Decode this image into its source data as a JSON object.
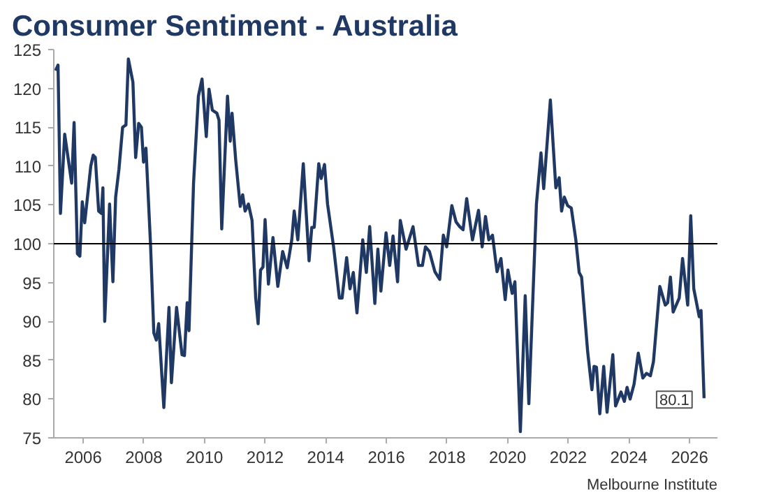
{
  "chart_data": {
    "type": "line",
    "title": "Consumer Sentiment - Australia",
    "annotations": [
      {
        "text": "80.1",
        "x": 2026.48,
        "y": 80.1
      },
      "Melbourne Institute"
    ],
    "xlim": [
      2005.03,
      2026.92
    ],
    "ylim": [
      75,
      125
    ],
    "xticks": [
      2006,
      2008,
      2010,
      2012,
      2014,
      2016,
      2018,
      2020,
      2022,
      2024,
      2026
    ],
    "yticks": [
      75,
      80,
      85,
      90,
      95,
      100,
      105,
      110,
      115,
      120,
      125
    ],
    "grid": false,
    "ref_lines": [
      {
        "axis": "y",
        "value": 100,
        "color": "#000000"
      }
    ],
    "series": [
      {
        "color": "#1f3864",
        "x": [
          2005.09,
          2005.17,
          2005.25,
          2005.39,
          2005.62,
          2005.7,
          2005.81,
          2005.89,
          2005.97,
          2006.05,
          2006.25,
          2006.33,
          2006.4,
          2006.51,
          2006.6,
          2006.65,
          2006.71,
          2006.87,
          2006.98,
          2007.07,
          2007.18,
          2007.3,
          2007.41,
          2007.49,
          2007.64,
          2007.73,
          2007.83,
          2007.92,
          2007.99,
          2008.07,
          2008.22,
          2008.33,
          2008.41,
          2008.49,
          2008.66,
          2008.83,
          2008.91,
          2009.08,
          2009.26,
          2009.34,
          2009.43,
          2009.49,
          2009.64,
          2009.8,
          2009.92,
          2010.06,
          2010.15,
          2010.26,
          2010.41,
          2010.48,
          2010.57,
          2010.76,
          2010.85,
          2010.91,
          2011.03,
          2011.18,
          2011.26,
          2011.34,
          2011.45,
          2011.57,
          2011.69,
          2011.77,
          2011.85,
          2011.93,
          2012.0,
          2012.11,
          2012.26,
          2012.42,
          2012.58,
          2012.73,
          2012.88,
          2012.96,
          2013.08,
          2013.26,
          2013.45,
          2013.54,
          2013.62,
          2013.77,
          2013.85,
          2013.96,
          2014.06,
          2014.26,
          2014.45,
          2014.54,
          2014.69,
          2014.8,
          2014.91,
          2015.03,
          2015.22,
          2015.34,
          2015.45,
          2015.62,
          2015.72,
          2015.82,
          2015.99,
          2016.11,
          2016.22,
          2016.37,
          2016.46,
          2016.65,
          2016.88,
          2017.06,
          2017.19,
          2017.29,
          2017.42,
          2017.6,
          2017.76,
          2017.88,
          2017.99,
          2018.16,
          2018.3,
          2018.42,
          2018.53,
          2018.65,
          2018.84,
          2019.04,
          2019.16,
          2019.27,
          2019.38,
          2019.5,
          2019.65,
          2019.78,
          2019.92,
          2020.01,
          2020.15,
          2020.24,
          2020.42,
          2020.58,
          2020.7,
          2020.95,
          2021.1,
          2021.19,
          2021.41,
          2021.59,
          2021.7,
          2021.78,
          2021.87,
          2021.98,
          2022.1,
          2022.25,
          2022.36,
          2022.44,
          2022.64,
          2022.78,
          2022.85,
          2022.93,
          2023.04,
          2023.17,
          2023.28,
          2023.47,
          2023.56,
          2023.74,
          2023.85,
          2023.94,
          2024.04,
          2024.17,
          2024.31,
          2024.46,
          2024.58,
          2024.71,
          2024.81,
          2025.02,
          2025.2,
          2025.28,
          2025.37,
          2025.46,
          2025.66,
          2025.77,
          2025.94,
          2026.04,
          2026.14,
          2026.32,
          2026.38,
          2026.48
        ],
        "values": [
          122.3,
          123,
          103.9,
          114.1,
          107.8,
          115.6,
          98.7,
          98.4,
          105.4,
          102.7,
          110,
          111.4,
          111.1,
          104.2,
          103.9,
          107.2,
          90,
          105.1,
          95.1,
          106,
          109.6,
          115,
          115.3,
          123.8,
          120.8,
          111.1,
          115.5,
          115,
          110.5,
          112.3,
          100,
          88.5,
          87.6,
          89.7,
          78.9,
          91.8,
          82.1,
          91.8,
          85.7,
          85.6,
          92.4,
          88.8,
          107.8,
          119,
          121.2,
          113.8,
          119.9,
          117.2,
          116.8,
          115.9,
          101.9,
          119,
          113.2,
          116.8,
          110.8,
          104.8,
          106.3,
          104.2,
          105.1,
          103,
          93,
          89.7,
          96.6,
          97,
          103.1,
          94.8,
          100.8,
          94.5,
          99,
          96.9,
          100.5,
          104.2,
          100.5,
          110.3,
          97.8,
          102.1,
          102.1,
          110.3,
          108.4,
          110.2,
          105.1,
          99.6,
          93,
          93,
          98.2,
          94.2,
          96.3,
          91.1,
          100.5,
          96.3,
          102.2,
          92.3,
          99.3,
          93.9,
          101.4,
          97.2,
          101,
          95.1,
          103,
          99.3,
          102.2,
          97.2,
          97.2,
          99.6,
          99,
          96.4,
          95.4,
          101.1,
          99.6,
          104.9,
          102.8,
          102.2,
          101.8,
          105.8,
          100.5,
          104.3,
          99.6,
          103.5,
          100.5,
          101.1,
          96.4,
          98.1,
          92.8,
          96.6,
          93.6,
          95.1,
          75.8,
          93.3,
          79.4,
          105.1,
          111.7,
          107.1,
          118.5,
          107.2,
          108.5,
          104.2,
          106,
          104.9,
          104.6,
          100.5,
          96.3,
          95.7,
          86.1,
          81.2,
          84.2,
          84.1,
          78.1,
          84.2,
          78.3,
          85.7,
          79.1,
          80.9,
          79.7,
          81.5,
          80,
          81.9,
          85.9,
          82.7,
          83.3,
          83,
          84.8,
          94.5,
          92.1,
          92.4,
          95.7,
          91.2,
          93,
          98.1,
          92.1,
          103.6,
          94.2,
          90.6,
          91.4,
          80.1
        ]
      }
    ]
  }
}
